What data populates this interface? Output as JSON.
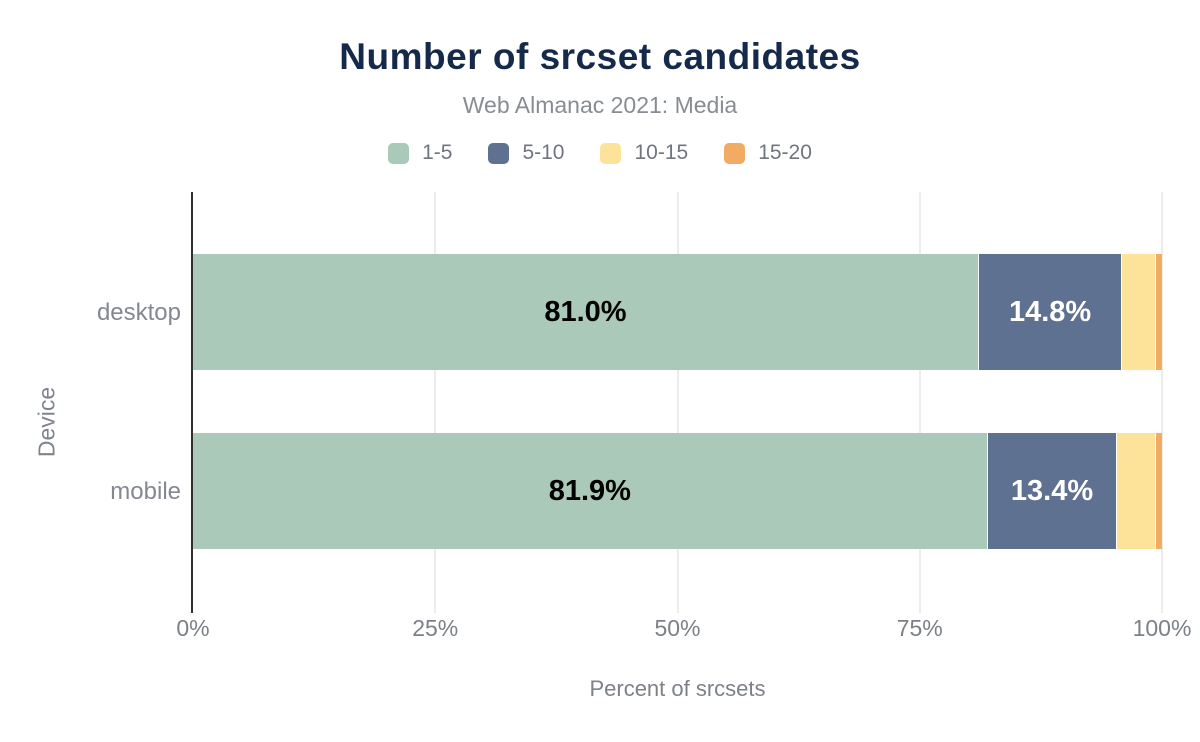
{
  "chart_data": {
    "type": "bar",
    "orientation": "horizontal",
    "stacked": true,
    "title": "Number of srcset candidates",
    "subtitle": "Web Almanac 2021: Media",
    "xlabel": "Percent of srcsets",
    "ylabel": "Device",
    "categories": [
      "desktop",
      "mobile"
    ],
    "series": [
      {
        "name": "1-5",
        "color": "#aac9b8",
        "values": [
          81.0,
          81.9
        ],
        "data_labels": [
          "81.0%",
          "81.9%"
        ],
        "data_label_color": "#000000"
      },
      {
        "name": "5-10",
        "color": "#5f7190",
        "values": [
          14.8,
          13.4
        ],
        "data_labels": [
          "14.8%",
          "13.4%"
        ],
        "data_label_color": "#ffffff"
      },
      {
        "name": "10-15",
        "color": "#fde39a",
        "values": [
          3.5,
          4.0
        ],
        "data_labels": [
          "",
          ""
        ],
        "data_label_color": "#000000"
      },
      {
        "name": "15-20",
        "color": "#f2ab62",
        "values": [
          0.7,
          0.7
        ],
        "data_labels": [
          "",
          ""
        ],
        "data_label_color": "#000000"
      }
    ],
    "xlim": [
      0,
      100
    ],
    "xticks": [
      {
        "value": 0,
        "label": "0%"
      },
      {
        "value": 25,
        "label": "25%"
      },
      {
        "value": 50,
        "label": "50%"
      },
      {
        "value": 75,
        "label": "75%"
      },
      {
        "value": 100,
        "label": "100%"
      }
    ],
    "grid": true,
    "legend_position": "top",
    "colors": {
      "title": "#152a4a",
      "subtitle": "#878d93",
      "axis_text": "#7d8288",
      "axis_line": "#2f2f2f",
      "gridline": "#ebecec"
    }
  }
}
